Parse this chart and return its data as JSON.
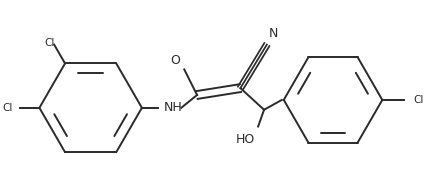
{
  "bg_color": "#ffffff",
  "line_color": "#2a2a2a",
  "line_width": 1.4,
  "figsize": [
    4.24,
    1.89
  ],
  "dpi": 100,
  "xlim": [
    0,
    424
  ],
  "ylim": [
    0,
    189
  ]
}
